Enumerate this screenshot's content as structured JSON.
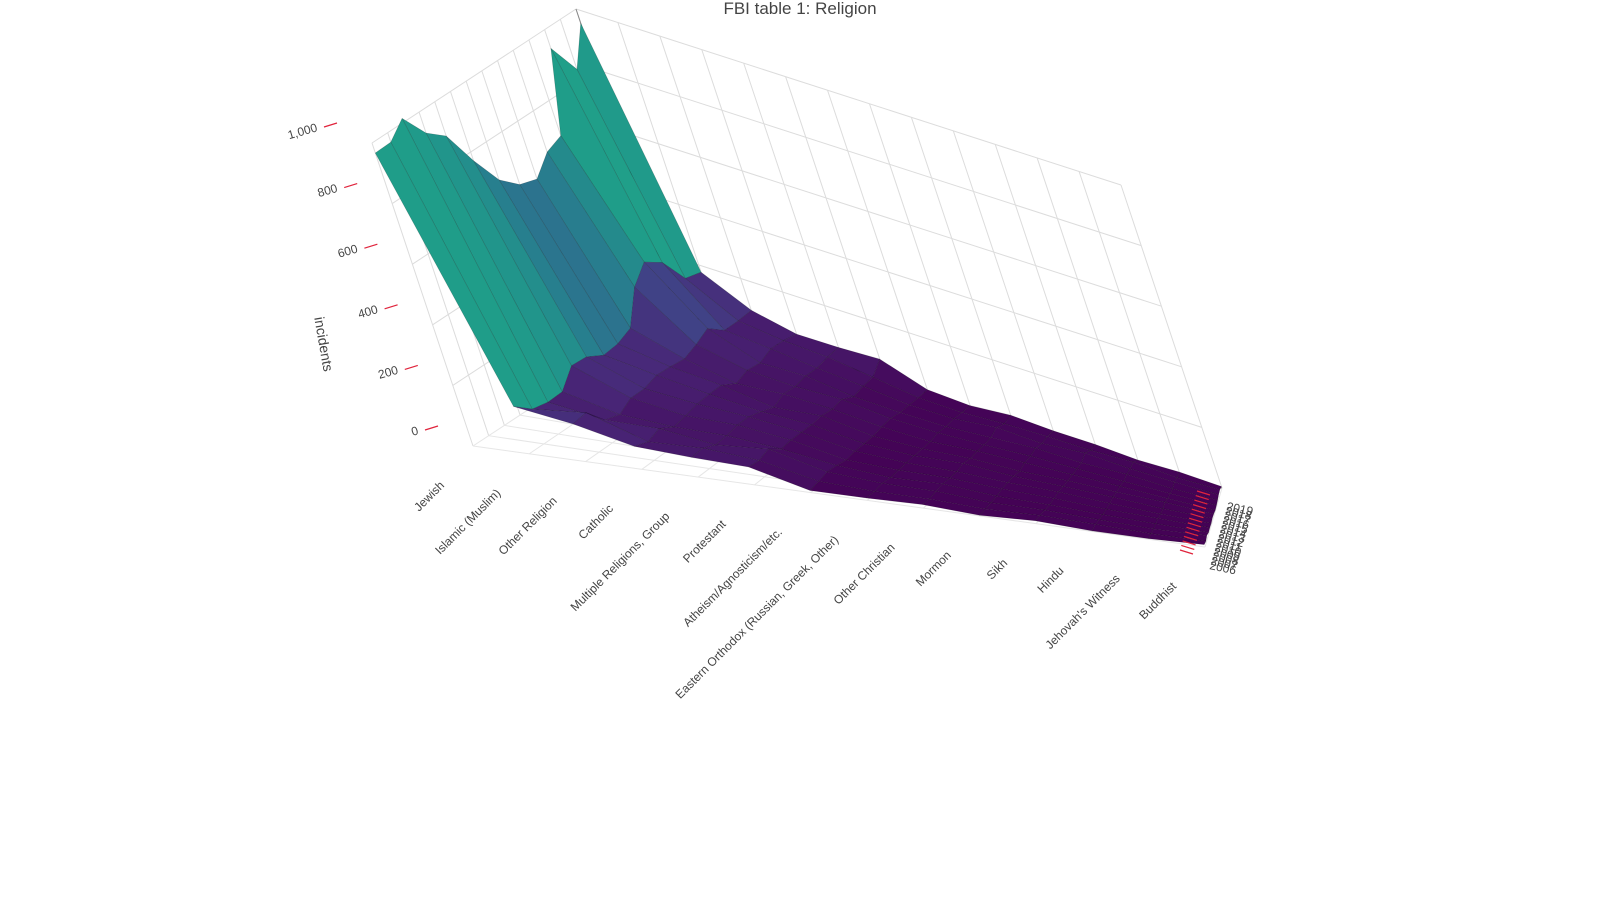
{
  "chart_data": {
    "type": "surface",
    "title": "FBI table 1: Religion",
    "zlabel": "incidents",
    "z_ticks": [
      "0",
      "200",
      "400",
      "600",
      "800",
      "1,000"
    ],
    "zlim": [
      0,
      1000
    ],
    "categories": [
      "Jewish",
      "Islamic (Muslim)",
      "Other Religion",
      "Catholic",
      "Multiple Religions, Group",
      "Protestant",
      "Atheism/Agnosticism/etc.",
      "Eastern Orthodox (Russian, Greek, Other)",
      "Other Christian",
      "Mormon",
      "Sikh",
      "Hindu",
      "Jehovah's Witness",
      "Buddhist"
    ],
    "years": [
      "2006",
      "2007",
      "2008",
      "2009",
      "2010",
      "2011",
      "2012",
      "2013",
      "2014",
      "2015",
      "2016",
      "2017",
      "2018",
      "2019"
    ],
    "series": [
      {
        "values": [
          967,
          969,
          1013,
          931,
          887,
          771,
          674,
          625,
          609,
          664,
          684,
          938,
          835,
          953
        ]
      },
      {
        "values": [
          156,
          115,
          105,
          107,
          160,
          157,
          130,
          135,
          154,
          257,
          307,
          273,
          188,
          176
        ]
      },
      {
        "values": [
          124,
          130,
          75,
          62,
          85,
          85,
          98,
          95,
          90,
          106,
          128,
          91,
          91,
          95
        ]
      },
      {
        "values": [
          76,
          61,
          75,
          51,
          58,
          67,
          70,
          70,
          46,
          60,
          55,
          72,
          69,
          61
        ]
      },
      {
        "values": [
          65,
          67,
          50,
          52,
          59,
          58,
          47,
          33,
          49,
          45,
          52,
          50,
          58,
          62
        ]
      },
      {
        "values": [
          59,
          54,
          65,
          38,
          41,
          40,
          38,
          41,
          36,
          42,
          24,
          32,
          35,
          68
        ]
      },
      {
        "values": [
          7,
          12,
          18,
          14,
          7,
          11,
          10,
          10,
          15,
          18,
          12,
          12,
          10,
          12
        ]
      },
      {
        "values": [
          8,
          6,
          9,
          4,
          5,
          5,
          5,
          4,
          4,
          9,
          6,
          8,
          5,
          4
        ]
      },
      {
        "values": [
          12,
          8,
          11,
          13,
          10,
          9,
          14,
          8,
          10,
          8,
          10,
          21,
          11,
          17
        ]
      },
      {
        "values": [
          2,
          2,
          2,
          3,
          6,
          6,
          6,
          2,
          9,
          10,
          15,
          10,
          12,
          10
        ]
      },
      {
        "values": [
          10,
          8,
          6,
          4,
          6,
          8,
          7,
          6,
          7,
          7,
          7,
          20,
          10,
          10
        ]
      },
      {
        "values": [
          2,
          6,
          3,
          2,
          2,
          3,
          6,
          5,
          6,
          4,
          10,
          10,
          14,
          3
        ]
      },
      {
        "values": [
          2,
          2,
          1,
          2,
          3,
          1,
          2,
          7,
          3,
          3,
          2,
          8,
          6,
          8
        ]
      },
      {
        "values": [
          8,
          4,
          8,
          3,
          4,
          3,
          5,
          4,
          2,
          3,
          5,
          8,
          9,
          5
        ]
      }
    ],
    "colorscale": [
      "#440154",
      "#482878",
      "#3e4989",
      "#31688e",
      "#26828e",
      "#1f9e89",
      "#35b779",
      "#6ece58",
      "#b5de2b",
      "#fde725"
    ],
    "grid": true,
    "legend": "none"
  }
}
